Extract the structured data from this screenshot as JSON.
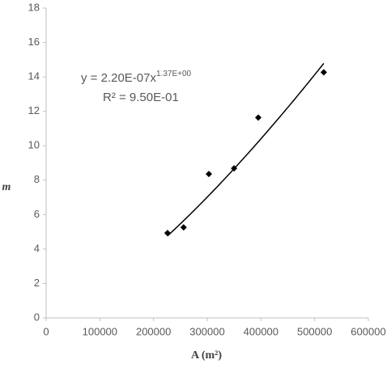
{
  "chart_data": {
    "type": "scatter",
    "xlabel": "A (m²)",
    "ylabel": "m",
    "x": [
      226000,
      256000,
      303000,
      350000,
      395000,
      517000
    ],
    "values": [
      4.93,
      5.26,
      8.36,
      8.69,
      11.64,
      14.27
    ],
    "color": "#000000",
    "xlim": [
      0,
      600000
    ],
    "xticks": [
      0,
      100000,
      200000,
      300000,
      400000,
      500000,
      600000
    ],
    "ylim": [
      0,
      18
    ],
    "yticks": [
      0,
      2,
      4,
      6,
      8,
      10,
      12,
      14,
      16,
      18
    ],
    "grid": false,
    "trendline": {
      "kind": "power",
      "coefficient": {
        "value": 2.2e-07,
        "label": "2.20E-07"
      },
      "exponent": {
        "value": 1.37,
        "label": "1.37E+00"
      },
      "equation_prefix": "y = ",
      "equation_variable": "x",
      "r_squared_label": "R² = 9.50E-01"
    }
  }
}
